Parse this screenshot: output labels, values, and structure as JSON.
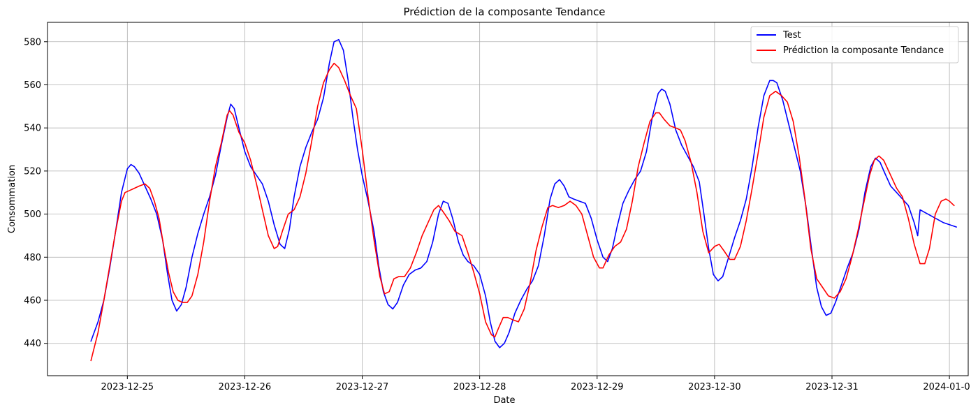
{
  "chart_data": {
    "type": "line",
    "title": "Prédiction de la composante Tendance",
    "xlabel": "Date",
    "ylabel": "Consommation",
    "x_ticks": [
      "2023-12-25",
      "2023-12-26",
      "2023-12-27",
      "2023-12-28",
      "2023-12-29",
      "2023-12-30",
      "2023-12-31",
      "2024-01-01"
    ],
    "y_ticks": [
      440,
      460,
      480,
      500,
      520,
      540,
      560,
      580
    ],
    "xlim": [
      -0.68,
      7.16
    ],
    "ylim": [
      425,
      589
    ],
    "grid": true,
    "legend_position": "top-right",
    "series": [
      {
        "name": "Test",
        "color": "#0000ff",
        "points": [
          [
            -0.31,
            441
          ],
          [
            -0.25,
            450
          ],
          [
            -0.2,
            460
          ],
          [
            -0.15,
            475
          ],
          [
            -0.1,
            492
          ],
          [
            -0.05,
            510
          ],
          [
            0.0,
            521
          ],
          [
            0.03,
            523
          ],
          [
            0.06,
            522
          ],
          [
            0.1,
            519
          ],
          [
            0.15,
            513
          ],
          [
            0.2,
            507
          ],
          [
            0.25,
            500
          ],
          [
            0.3,
            488
          ],
          [
            0.34,
            473
          ],
          [
            0.38,
            460
          ],
          [
            0.42,
            455
          ],
          [
            0.46,
            458
          ],
          [
            0.5,
            466
          ],
          [
            0.55,
            480
          ],
          [
            0.6,
            491
          ],
          [
            0.65,
            500
          ],
          [
            0.7,
            508
          ],
          [
            0.75,
            518
          ],
          [
            0.8,
            532
          ],
          [
            0.85,
            545
          ],
          [
            0.88,
            551
          ],
          [
            0.91,
            549
          ],
          [
            0.95,
            540
          ],
          [
            1.0,
            529
          ],
          [
            1.05,
            522
          ],
          [
            1.1,
            518
          ],
          [
            1.15,
            514
          ],
          [
            1.2,
            506
          ],
          [
            1.25,
            495
          ],
          [
            1.3,
            486
          ],
          [
            1.34,
            484
          ],
          [
            1.38,
            493
          ],
          [
            1.42,
            508
          ],
          [
            1.47,
            522
          ],
          [
            1.52,
            531
          ],
          [
            1.57,
            538
          ],
          [
            1.62,
            544
          ],
          [
            1.67,
            554
          ],
          [
            1.72,
            570
          ],
          [
            1.76,
            580
          ],
          [
            1.8,
            581
          ],
          [
            1.84,
            576
          ],
          [
            1.88,
            562
          ],
          [
            1.92,
            545
          ],
          [
            1.96,
            530
          ],
          [
            2.0,
            518
          ],
          [
            2.05,
            506
          ],
          [
            2.1,
            492
          ],
          [
            2.14,
            476
          ],
          [
            2.18,
            464
          ],
          [
            2.22,
            458
          ],
          [
            2.26,
            456
          ],
          [
            2.3,
            459
          ],
          [
            2.35,
            467
          ],
          [
            2.4,
            472
          ],
          [
            2.45,
            474
          ],
          [
            2.5,
            475
          ],
          [
            2.55,
            478
          ],
          [
            2.6,
            487
          ],
          [
            2.65,
            500
          ],
          [
            2.69,
            506
          ],
          [
            2.73,
            505
          ],
          [
            2.77,
            498
          ],
          [
            2.82,
            487
          ],
          [
            2.86,
            481
          ],
          [
            2.9,
            478
          ],
          [
            2.95,
            476
          ],
          [
            3.0,
            472
          ],
          [
            3.05,
            462
          ],
          [
            3.09,
            450
          ],
          [
            3.13,
            441
          ],
          [
            3.17,
            438
          ],
          [
            3.21,
            440
          ],
          [
            3.25,
            445
          ],
          [
            3.3,
            454
          ],
          [
            3.35,
            460
          ],
          [
            3.4,
            465
          ],
          [
            3.45,
            469
          ],
          [
            3.5,
            476
          ],
          [
            3.55,
            490
          ],
          [
            3.6,
            507
          ],
          [
            3.64,
            514
          ],
          [
            3.68,
            516
          ],
          [
            3.72,
            513
          ],
          [
            3.76,
            508
          ],
          [
            3.8,
            507
          ],
          [
            3.85,
            506
          ],
          [
            3.9,
            505
          ],
          [
            3.95,
            498
          ],
          [
            4.0,
            488
          ],
          [
            4.05,
            480
          ],
          [
            4.09,
            478
          ],
          [
            4.13,
            484
          ],
          [
            4.17,
            494
          ],
          [
            4.22,
            505
          ],
          [
            4.27,
            511
          ],
          [
            4.32,
            516
          ],
          [
            4.37,
            520
          ],
          [
            4.42,
            529
          ],
          [
            4.47,
            545
          ],
          [
            4.52,
            556
          ],
          [
            4.55,
            558
          ],
          [
            4.58,
            557
          ],
          [
            4.62,
            551
          ],
          [
            4.67,
            539
          ],
          [
            4.72,
            532
          ],
          [
            4.77,
            527
          ],
          [
            4.82,
            522
          ],
          [
            4.87,
            515
          ],
          [
            4.91,
            500
          ],
          [
            4.95,
            484
          ],
          [
            4.99,
            472
          ],
          [
            5.03,
            469
          ],
          [
            5.07,
            471
          ],
          [
            5.12,
            480
          ],
          [
            5.17,
            489
          ],
          [
            5.22,
            497
          ],
          [
            5.27,
            507
          ],
          [
            5.32,
            522
          ],
          [
            5.37,
            540
          ],
          [
            5.42,
            555
          ],
          [
            5.47,
            562
          ],
          [
            5.5,
            562
          ],
          [
            5.53,
            561
          ],
          [
            5.58,
            553
          ],
          [
            5.63,
            542
          ],
          [
            5.68,
            531
          ],
          [
            5.73,
            520
          ],
          [
            5.78,
            503
          ],
          [
            5.83,
            482
          ],
          [
            5.87,
            466
          ],
          [
            5.91,
            457
          ],
          [
            5.95,
            453
          ],
          [
            5.99,
            454
          ],
          [
            6.03,
            459
          ],
          [
            6.08,
            467
          ],
          [
            6.13,
            475
          ],
          [
            6.18,
            482
          ],
          [
            6.23,
            493
          ],
          [
            6.28,
            510
          ],
          [
            6.33,
            522
          ],
          [
            6.37,
            526
          ],
          [
            6.41,
            524
          ],
          [
            6.45,
            519
          ],
          [
            6.5,
            513
          ],
          [
            6.55,
            510
          ],
          [
            6.6,
            507
          ],
          [
            6.65,
            504
          ],
          [
            6.7,
            496
          ],
          [
            6.73,
            490
          ],
          [
            6.75,
            502
          ],
          [
            6.85,
            499
          ],
          [
            6.95,
            496
          ],
          [
            7.06,
            494
          ]
        ]
      },
      {
        "name": "Prédiction la composante Tendance",
        "color": "#ff0000",
        "points": [
          [
            -0.31,
            432
          ],
          [
            -0.25,
            445
          ],
          [
            -0.2,
            460
          ],
          [
            -0.15,
            476
          ],
          [
            -0.1,
            492
          ],
          [
            -0.05,
            506
          ],
          [
            -0.02,
            510
          ],
          [
            0.02,
            511
          ],
          [
            0.06,
            512
          ],
          [
            0.1,
            513
          ],
          [
            0.15,
            514
          ],
          [
            0.19,
            512
          ],
          [
            0.23,
            506
          ],
          [
            0.27,
            498
          ],
          [
            0.31,
            485
          ],
          [
            0.35,
            473
          ],
          [
            0.39,
            464
          ],
          [
            0.43,
            460
          ],
          [
            0.47,
            459
          ],
          [
            0.51,
            459
          ],
          [
            0.55,
            462
          ],
          [
            0.6,
            472
          ],
          [
            0.65,
            487
          ],
          [
            0.7,
            506
          ],
          [
            0.75,
            522
          ],
          [
            0.8,
            533
          ],
          [
            0.85,
            546
          ],
          [
            0.87,
            548
          ],
          [
            0.9,
            546
          ],
          [
            0.95,
            538
          ],
          [
            1.0,
            533
          ],
          [
            1.05,
            525
          ],
          [
            1.1,
            514
          ],
          [
            1.15,
            502
          ],
          [
            1.2,
            490
          ],
          [
            1.25,
            484
          ],
          [
            1.28,
            485
          ],
          [
            1.32,
            492
          ],
          [
            1.37,
            500
          ],
          [
            1.42,
            502
          ],
          [
            1.47,
            508
          ],
          [
            1.52,
            519
          ],
          [
            1.57,
            534
          ],
          [
            1.62,
            550
          ],
          [
            1.67,
            561
          ],
          [
            1.72,
            567
          ],
          [
            1.76,
            570
          ],
          [
            1.8,
            568
          ],
          [
            1.85,
            562
          ],
          [
            1.9,
            555
          ],
          [
            1.95,
            549
          ],
          [
            2.0,
            530
          ],
          [
            2.05,
            508
          ],
          [
            2.1,
            488
          ],
          [
            2.15,
            471
          ],
          [
            2.19,
            463
          ],
          [
            2.23,
            464
          ],
          [
            2.27,
            470
          ],
          [
            2.31,
            471
          ],
          [
            2.36,
            471
          ],
          [
            2.41,
            475
          ],
          [
            2.46,
            482
          ],
          [
            2.51,
            490
          ],
          [
            2.56,
            496
          ],
          [
            2.61,
            502
          ],
          [
            2.65,
            504
          ],
          [
            2.69,
            501
          ],
          [
            2.74,
            497
          ],
          [
            2.79,
            492
          ],
          [
            2.85,
            490
          ],
          [
            2.9,
            482
          ],
          [
            2.95,
            473
          ],
          [
            3.0,
            463
          ],
          [
            3.05,
            450
          ],
          [
            3.1,
            444
          ],
          [
            3.13,
            443
          ],
          [
            3.16,
            447
          ],
          [
            3.2,
            452
          ],
          [
            3.24,
            452
          ],
          [
            3.28,
            451
          ],
          [
            3.33,
            450
          ],
          [
            3.38,
            456
          ],
          [
            3.43,
            468
          ],
          [
            3.48,
            483
          ],
          [
            3.53,
            494
          ],
          [
            3.58,
            503
          ],
          [
            3.62,
            504
          ],
          [
            3.67,
            503
          ],
          [
            3.72,
            504
          ],
          [
            3.77,
            506
          ],
          [
            3.82,
            504
          ],
          [
            3.87,
            500
          ],
          [
            3.92,
            490
          ],
          [
            3.97,
            480
          ],
          [
            4.02,
            475
          ],
          [
            4.05,
            475
          ],
          [
            4.1,
            481
          ],
          [
            4.15,
            485
          ],
          [
            4.2,
            487
          ],
          [
            4.25,
            493
          ],
          [
            4.3,
            506
          ],
          [
            4.35,
            522
          ],
          [
            4.4,
            533
          ],
          [
            4.45,
            543
          ],
          [
            4.5,
            547
          ],
          [
            4.53,
            547
          ],
          [
            4.57,
            544
          ],
          [
            4.62,
            541
          ],
          [
            4.67,
            540
          ],
          [
            4.71,
            539
          ],
          [
            4.75,
            534
          ],
          [
            4.8,
            524
          ],
          [
            4.85,
            510
          ],
          [
            4.9,
            492
          ],
          [
            4.95,
            482
          ],
          [
            5.0,
            485
          ],
          [
            5.04,
            486
          ],
          [
            5.08,
            483
          ],
          [
            5.13,
            479
          ],
          [
            5.17,
            479
          ],
          [
            5.22,
            485
          ],
          [
            5.27,
            497
          ],
          [
            5.32,
            512
          ],
          [
            5.37,
            528
          ],
          [
            5.42,
            545
          ],
          [
            5.47,
            555
          ],
          [
            5.52,
            557
          ],
          [
            5.57,
            555
          ],
          [
            5.62,
            552
          ],
          [
            5.67,
            543
          ],
          [
            5.72,
            527
          ],
          [
            5.77,
            507
          ],
          [
            5.82,
            484
          ],
          [
            5.87,
            470
          ],
          [
            5.92,
            466
          ],
          [
            5.97,
            462
          ],
          [
            6.02,
            461
          ],
          [
            6.07,
            464
          ],
          [
            6.12,
            470
          ],
          [
            6.17,
            480
          ],
          [
            6.22,
            492
          ],
          [
            6.27,
            505
          ],
          [
            6.32,
            518
          ],
          [
            6.36,
            525
          ],
          [
            6.4,
            527
          ],
          [
            6.44,
            525
          ],
          [
            6.5,
            518
          ],
          [
            6.55,
            512
          ],
          [
            6.6,
            508
          ],
          [
            6.65,
            498
          ],
          [
            6.7,
            486
          ],
          [
            6.75,
            477
          ],
          [
            6.79,
            477
          ],
          [
            6.83,
            484
          ],
          [
            6.88,
            500
          ],
          [
            6.93,
            506
          ],
          [
            6.97,
            507
          ],
          [
            7.0,
            506
          ],
          [
            7.04,
            504
          ]
        ]
      }
    ]
  }
}
